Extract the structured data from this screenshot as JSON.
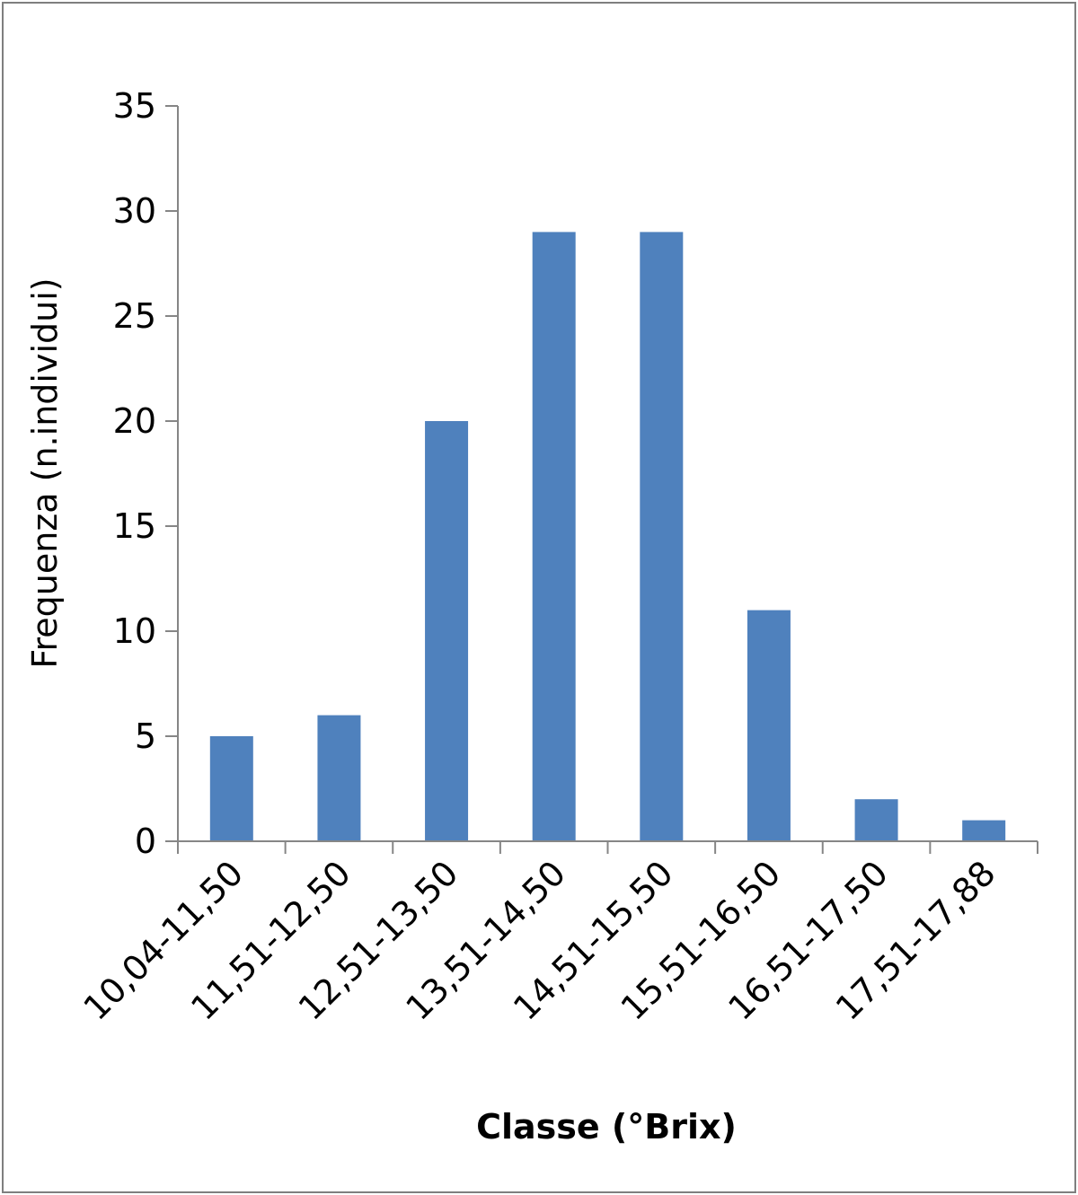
{
  "chart_data": {
    "type": "bar",
    "categories": [
      "10,04-11,50",
      "11,51-12,50",
      "12,51-13,50",
      "13,51-14,50",
      "14,51-15,50",
      "15,51-16,50",
      "16,51-17,50",
      "17,51-17,88"
    ],
    "values": [
      5,
      6,
      20,
      29,
      29,
      11,
      2,
      1
    ],
    "xlabel": "Classe (°Brix)",
    "ylabel": "Frequenza (n.individui)",
    "ylim": [
      0,
      35
    ],
    "yticks": [
      "0",
      "5",
      "10",
      "15",
      "20",
      "25",
      "30",
      "35"
    ],
    "grid": false,
    "legend": "none",
    "colors": {
      "bar": "#4f81bd",
      "axis": "#868686",
      "frame": "#7f7f7f"
    }
  }
}
